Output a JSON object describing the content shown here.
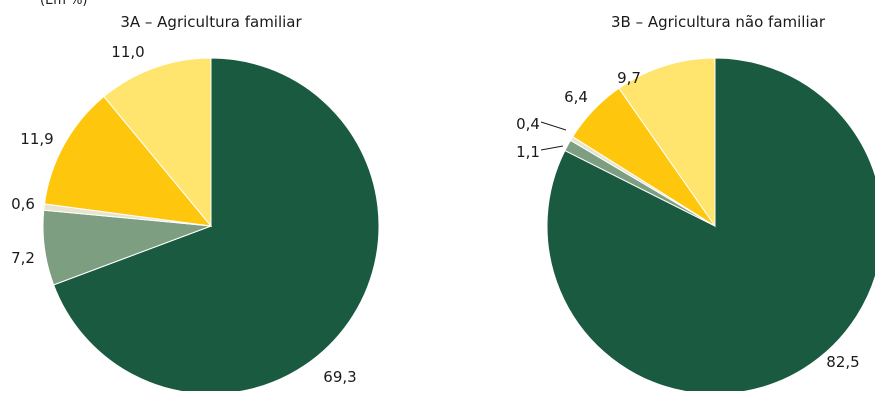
{
  "unit_label": "(Em %)",
  "chart_data": [
    {
      "type": "pie",
      "title": "3A – Agricultura familiar",
      "start": "12 o'clock",
      "direction": "clockwise",
      "slices": [
        {
          "value": 69.3,
          "label": "69,3",
          "color": "#1a5a40"
        },
        {
          "value": 7.2,
          "label": "7,2",
          "color": "#7e9e82"
        },
        {
          "value": 0.6,
          "label": "0,6",
          "color": "#e8e4cf"
        },
        {
          "value": 11.9,
          "label": "11,9",
          "color": "#fec60d"
        },
        {
          "value": 11.0,
          "label": "11,0",
          "color": "#ffe56e"
        }
      ]
    },
    {
      "type": "pie",
      "title": "3B – Agricultura não familiar",
      "start": "12 o'clock",
      "direction": "clockwise",
      "slices": [
        {
          "value": 82.5,
          "label": "82,5",
          "color": "#1a5a40"
        },
        {
          "value": 1.1,
          "label": "1,1",
          "color": "#7e9e82"
        },
        {
          "value": 0.4,
          "label": "0,4",
          "color": "#e8e4cf"
        },
        {
          "value": 6.4,
          "label": "6,4",
          "color": "#fec60d"
        },
        {
          "value": 9.7,
          "label": "9,7",
          "color": "#ffe56e"
        }
      ]
    }
  ]
}
